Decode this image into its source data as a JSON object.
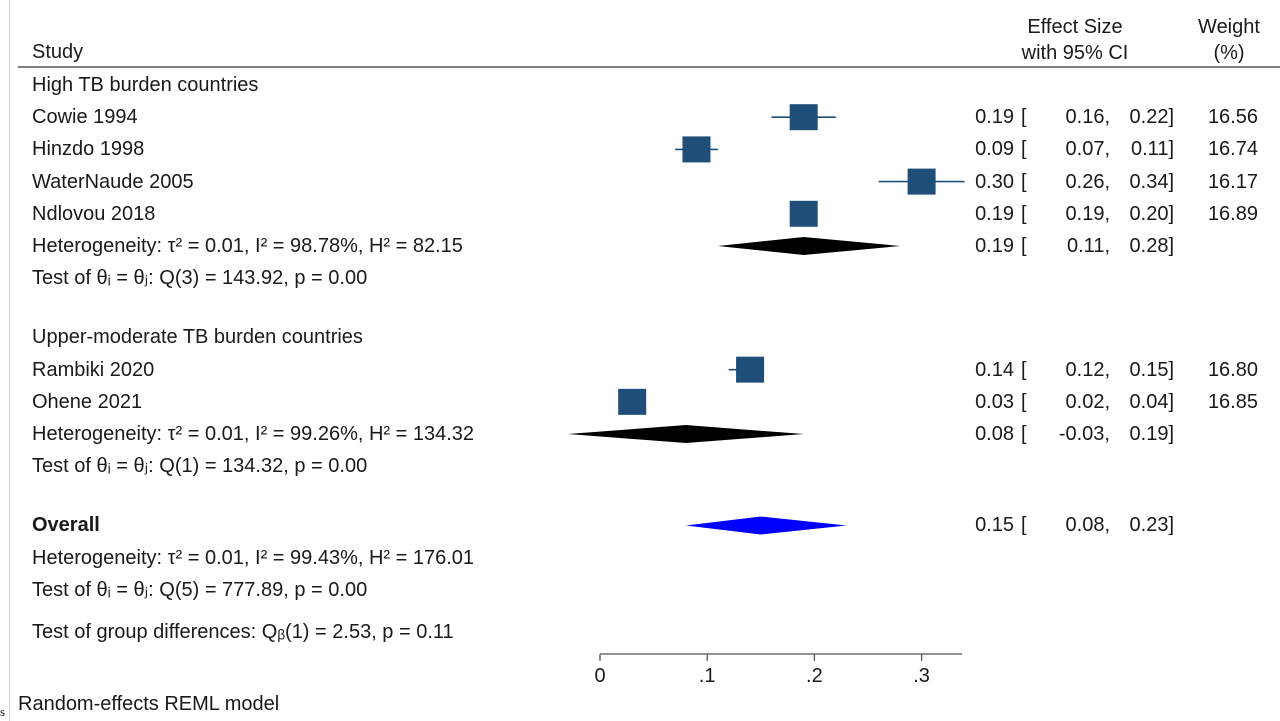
{
  "header": {
    "study": "Study",
    "effect_line1": "Effect Size",
    "effect_line2": "with 95% CI",
    "weight_line1": "Weight",
    "weight_line2": "(%)"
  },
  "stray_mark": "s",
  "footnote": "Random-effects REML model",
  "colors": {
    "study_marker": "#1f4e79",
    "subgroup_diamond": "#000000",
    "overall_diamond": "#0000ff"
  },
  "chart_data": {
    "type": "forest",
    "xlim": [
      0,
      0.34
    ],
    "x_ticks": [
      {
        "value": 0,
        "label": "0"
      },
      {
        "value": 0.1,
        "label": ".1"
      },
      {
        "value": 0.2,
        "label": ".2"
      },
      {
        "value": 0.3,
        "label": ".3"
      }
    ],
    "rows": [
      {
        "kind": "group",
        "label": "High TB burden countries"
      },
      {
        "kind": "study",
        "label": "Cowie 1994",
        "es": 0.19,
        "lo": 0.16,
        "hi": 0.22,
        "es_txt": "0.19",
        "lo_txt": "0.16,",
        "hi_txt": "0.22]",
        "weight": "16.56"
      },
      {
        "kind": "study",
        "label": "Hinzdo 1998",
        "es": 0.09,
        "lo": 0.07,
        "hi": 0.11,
        "es_txt": "0.09",
        "lo_txt": "0.07,",
        "hi_txt": "0.11]",
        "weight": "16.74"
      },
      {
        "kind": "study",
        "label": "WaterNaude 2005",
        "es": 0.3,
        "lo": 0.26,
        "hi": 0.34,
        "es_txt": "0.30",
        "lo_txt": "0.26,",
        "hi_txt": "0.34]",
        "weight": "16.17"
      },
      {
        "kind": "study",
        "label": "Ndlovou 2018",
        "es": 0.19,
        "lo": 0.19,
        "hi": 0.2,
        "es_txt": "0.19",
        "lo_txt": "0.19,",
        "hi_txt": "0.20]",
        "weight": "16.89"
      },
      {
        "kind": "subtotal",
        "label": "Heterogeneity: τ² = 0.01, I² = 98.78%, H² = 82.15",
        "es": 0.19,
        "lo": 0.11,
        "hi": 0.28,
        "es_txt": "0.19",
        "lo_txt": "0.11,",
        "hi_txt": "0.28]"
      },
      {
        "kind": "text",
        "label": "Test of θᵢ = θⱼ: Q(3) = 143.92, p = 0.00"
      },
      {
        "kind": "blank"
      },
      {
        "kind": "group",
        "label": "Upper-moderate TB burden countries"
      },
      {
        "kind": "study",
        "label": "Rambiki 2020",
        "es": 0.14,
        "lo": 0.12,
        "hi": 0.15,
        "es_txt": "0.14",
        "lo_txt": "0.12,",
        "hi_txt": "0.15]",
        "weight": "16.80"
      },
      {
        "kind": "study",
        "label": "Ohene 2021",
        "es": 0.03,
        "lo": 0.02,
        "hi": 0.04,
        "es_txt": "0.03",
        "lo_txt": "0.02,",
        "hi_txt": "0.04]",
        "weight": "16.85"
      },
      {
        "kind": "subtotal",
        "label": "Heterogeneity: τ² = 0.01, I² = 99.26%, H² = 134.32",
        "es": 0.08,
        "lo": -0.03,
        "hi": 0.19,
        "es_txt": "0.08",
        "lo_txt": "-0.03,",
        "hi_txt": "0.19]"
      },
      {
        "kind": "text",
        "label": "Test of θᵢ = θⱼ: Q(1) = 134.32, p = 0.00"
      },
      {
        "kind": "blank"
      },
      {
        "kind": "overall",
        "label": "Overall",
        "es": 0.15,
        "lo": 0.08,
        "hi": 0.23,
        "es_txt": "0.15",
        "lo_txt": "0.08,",
        "hi_txt": "0.23]"
      },
      {
        "kind": "text",
        "label": "Heterogeneity: τ² = 0.01, I² = 99.43%, H² = 176.01"
      },
      {
        "kind": "text",
        "label": "Test of θᵢ = θⱼ: Q(5) = 777.89, p = 0.00"
      },
      {
        "kind": "text",
        "label": "Test of group differences: Qᵦ(1) = 2.53, p = 0.11"
      }
    ]
  }
}
